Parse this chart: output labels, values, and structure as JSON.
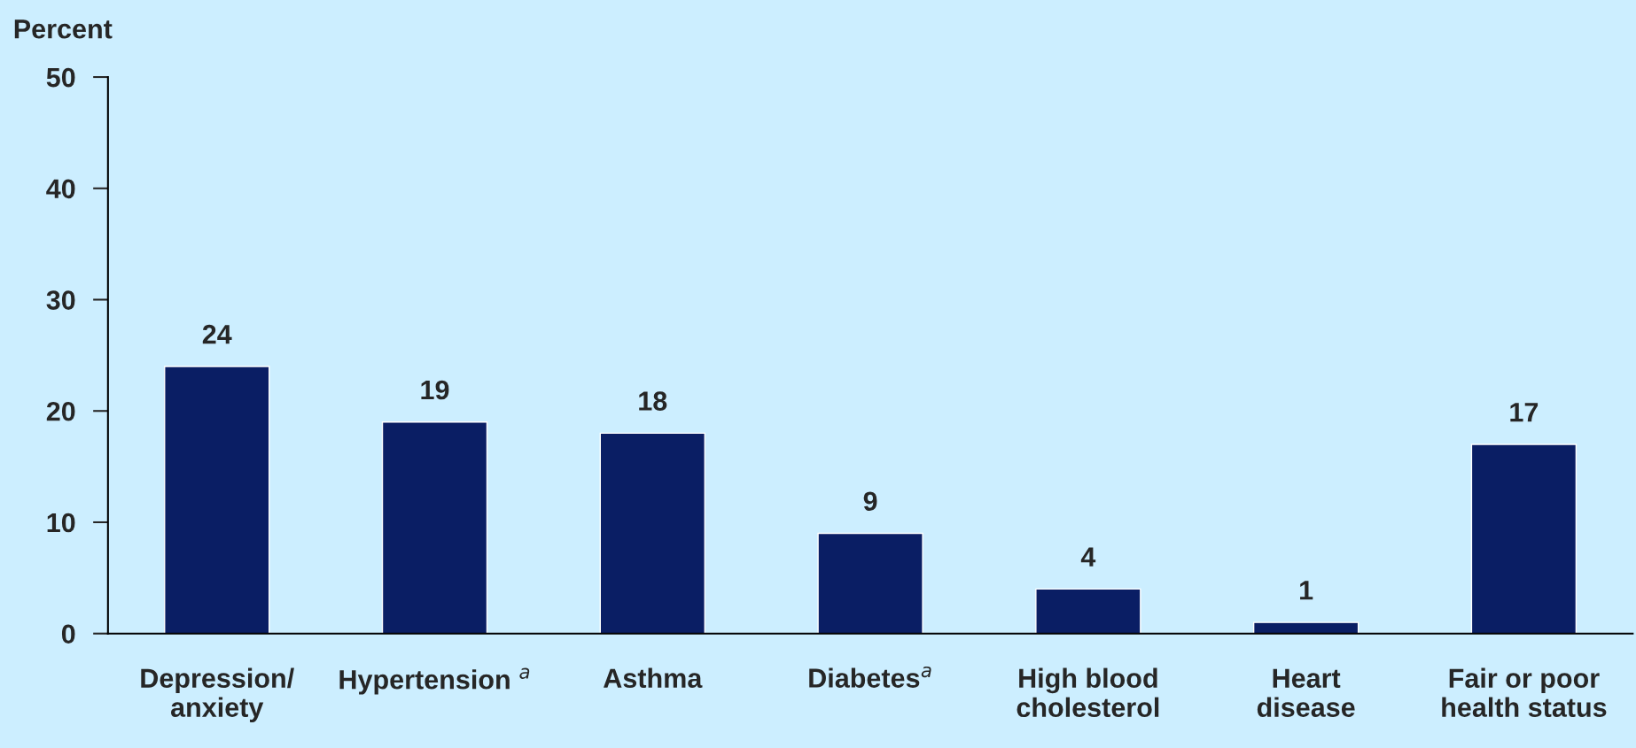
{
  "chart_data": {
    "type": "bar",
    "ylabel": "Percent",
    "categories": [
      "Depression/\nanxiety",
      "Hypertension $^{a}$",
      "Asthma",
      "Diabetes$^{a}$",
      "High blood\ncholesterol",
      "Heart\ndisease",
      "Fair or poor\nhealth status"
    ],
    "values": [
      24,
      19,
      18,
      9,
      4,
      1,
      17
    ],
    "color": "#0a1e64",
    "ylim": [
      0,
      50
    ],
    "yticks": [
      0,
      10,
      20,
      30,
      40,
      50
    ],
    "grid": false,
    "data_labels": true
  }
}
